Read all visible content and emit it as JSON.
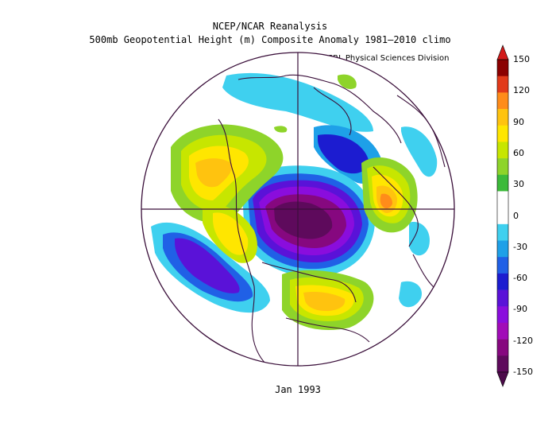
{
  "figure": {
    "title_line1": "NCEP/NCAR Reanalysis",
    "title_line2": "500mb Geopotential Height (m) Composite Anomaly 1981–2010 climo",
    "credit": "NOAA/ESRL Physical Sciences Division",
    "period": "Jan 1993"
  },
  "colorbar": {
    "ticks": [
      "150",
      "120",
      "90",
      "60",
      "30",
      "0",
      "-30",
      "-60",
      "-90",
      "-120",
      "-150"
    ],
    "colors": [
      "#8b0000",
      "#e23a1a",
      "#ff8c1a",
      "#ffc30f",
      "#ffe600",
      "#c7e600",
      "#8ed42a",
      "#3cba3a",
      "#ffffff",
      "#ffffff",
      "#3fd0ef",
      "#1ea0e8",
      "#2060e6",
      "#1c1cd0",
      "#5a12d8",
      "#8a0ddd",
      "#a10cb8",
      "#86087f",
      "#5e0a5c"
    ],
    "arrow_top": "#d21a1a",
    "arrow_bottom": "#4c0a4a"
  },
  "map": {
    "projection": "polar stereographic, North Pole centered",
    "features": [
      "coastlines",
      "meridian and equator-style cross lines"
    ],
    "anomaly_regions": [
      {
        "name": "north-america-trough",
        "sign": "negative",
        "peak": -150
      },
      {
        "name": "north-pacific-ridge",
        "sign": "positive",
        "peak": 90
      },
      {
        "name": "europe-ridge",
        "sign": "positive",
        "peak": 120
      },
      {
        "name": "north-atlantic-ridge",
        "sign": "positive",
        "peak": 90
      },
      {
        "name": "east-pacific-trough",
        "sign": "negative",
        "peak": -90
      },
      {
        "name": "arctic-trough",
        "sign": "negative",
        "peak": -60
      }
    ]
  }
}
